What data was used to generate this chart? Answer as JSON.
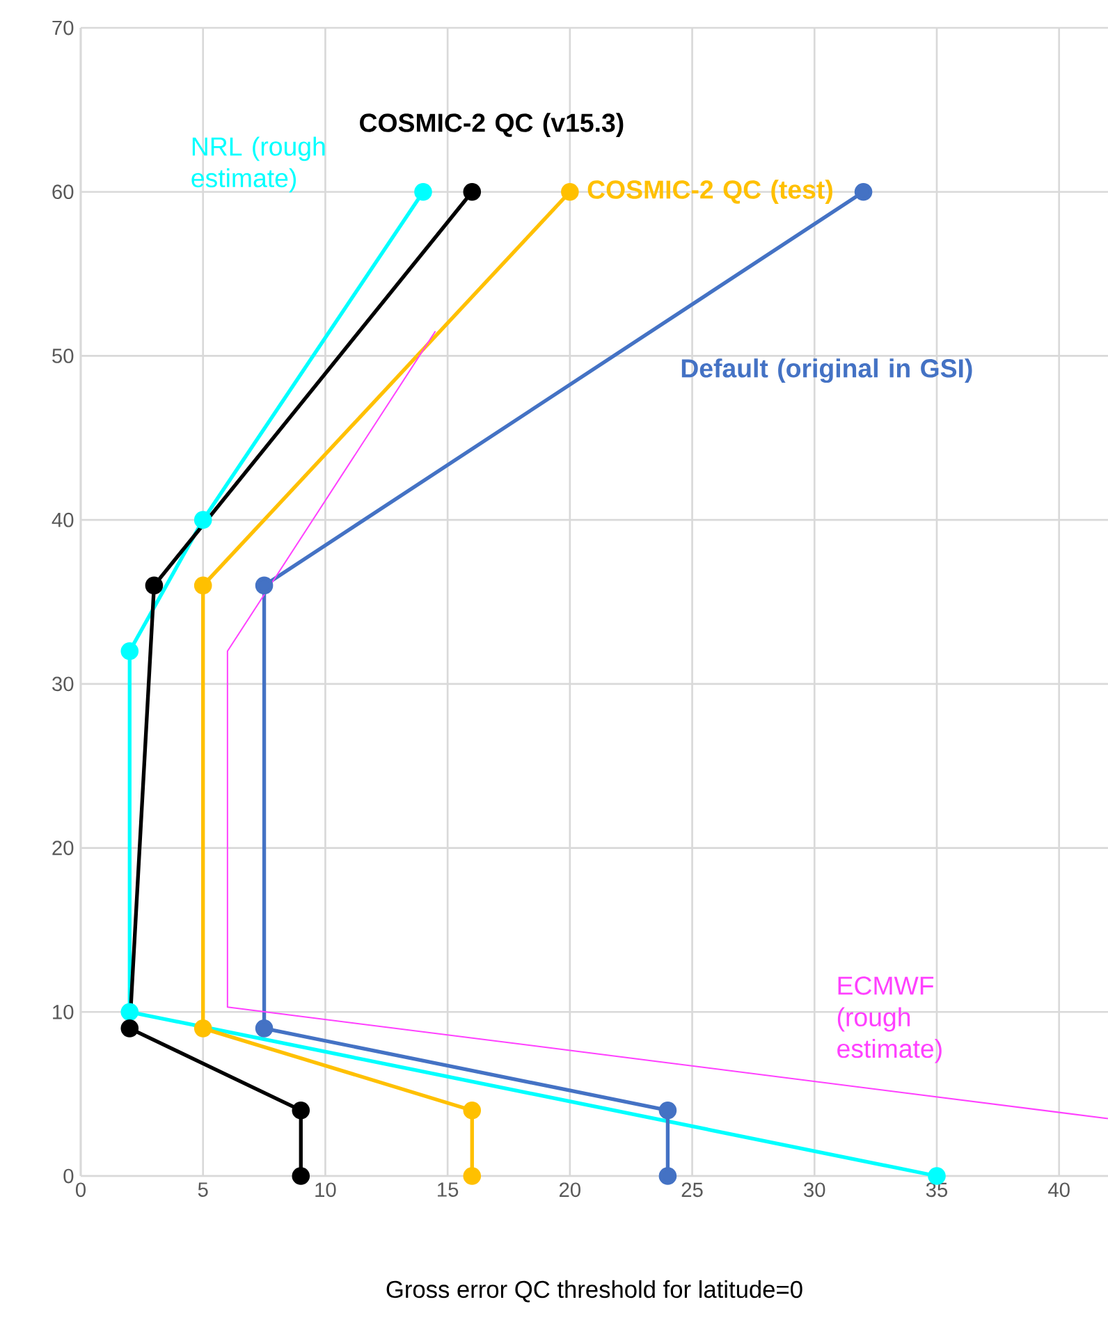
{
  "chart_data": {
    "type": "line",
    "xlabel": "Gross error QC threshold for latitude=0",
    "xlim": [
      0,
      42
    ],
    "ylim": [
      0,
      70
    ],
    "xticks": [
      0,
      5,
      10,
      15,
      20,
      25,
      30,
      35,
      40
    ],
    "yticks": [
      0,
      10,
      20,
      30,
      40,
      50,
      60,
      70
    ],
    "grid": true,
    "legend": false,
    "marker": "circle",
    "series": [
      {
        "name": "NRL (rough estimate)",
        "color": "#00ffff",
        "x": [
          35,
          2,
          2,
          5,
          14
        ],
        "values": [
          0,
          10,
          32,
          40,
          60
        ]
      },
      {
        "name": "COSMIC-2 QC (v15.3)",
        "color": "#000000",
        "x": [
          9,
          9,
          2,
          3,
          16
        ],
        "values": [
          0,
          4,
          9,
          36,
          60
        ]
      },
      {
        "name": "COSMIC-2 QC (test)",
        "color": "#ffc000",
        "x": [
          16,
          16,
          5,
          5,
          20
        ],
        "values": [
          0,
          4,
          9,
          36,
          60
        ]
      },
      {
        "name": "Default (original in GSI)",
        "color": "#4472c4",
        "x": [
          24,
          24,
          7.5,
          7.5,
          32
        ],
        "values": [
          0,
          4,
          9,
          36,
          60
        ]
      },
      {
        "name": "ECMWF (rough estimate)",
        "color": "#ff40ff",
        "marker": "none",
        "x": [
          42,
          6,
          6,
          14.5
        ],
        "values": [
          3.5,
          10.3,
          32,
          51.5
        ]
      }
    ]
  }
}
